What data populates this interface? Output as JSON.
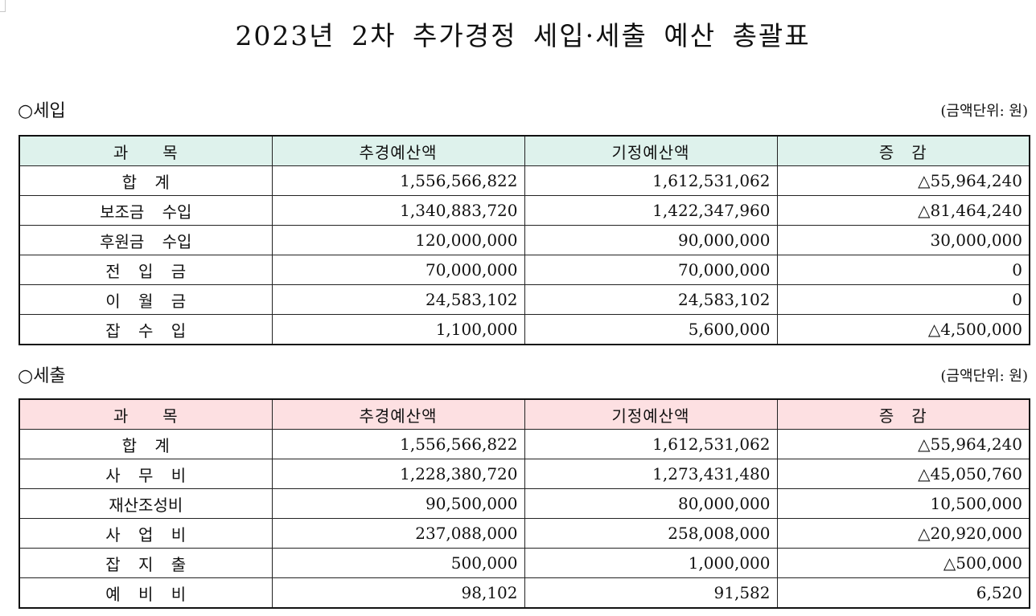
{
  "title": "2023년 2차 추가경정 세입·세출 예산 총괄표",
  "revenue": {
    "section_title": "○세입",
    "unit": "(금액단위: 원)",
    "headers": [
      "과　　목",
      "추경예산액",
      "기정예산액",
      "증　감"
    ],
    "rows": [
      {
        "item": "합 계",
        "supplementary": "1,556,566,822",
        "existing": "1,612,531,062",
        "change": "△55,964,240"
      },
      {
        "item": "보조금 수입",
        "supplementary": "1,340,883,720",
        "existing": "1,422,347,960",
        "change": "△81,464,240"
      },
      {
        "item": "후원금 수입",
        "supplementary": "120,000,000",
        "existing": "90,000,000",
        "change": "30,000,000"
      },
      {
        "item": "전 입 금",
        "supplementary": "70,000,000",
        "existing": "70,000,000",
        "change": "0"
      },
      {
        "item": "이 월 금",
        "supplementary": "24,583,102",
        "existing": "24,583,102",
        "change": "0"
      },
      {
        "item": "잡 수 입",
        "supplementary": "1,100,000",
        "existing": "5,600,000",
        "change": "△4,500,000"
      }
    ]
  },
  "expense": {
    "section_title": "○세출",
    "unit": "(금액단위: 원)",
    "headers": [
      "과　　목",
      "추경예산액",
      "기정예산액",
      "증　감"
    ],
    "rows": [
      {
        "item": "합 계",
        "supplementary": "1,556,566,822",
        "existing": "1,612,531,062",
        "change": "△55,964,240"
      },
      {
        "item": "사 무 비",
        "supplementary": "1,228,380,720",
        "existing": "1,273,431,480",
        "change": "△45,050,760"
      },
      {
        "item": "재산조성비",
        "supplementary": "90,500,000",
        "existing": "80,000,000",
        "change": "10,500,000"
      },
      {
        "item": "사 업 비",
        "supplementary": "237,088,000",
        "existing": "258,008,000",
        "change": "△20,920,000"
      },
      {
        "item": "잡 지 출",
        "supplementary": "500,000",
        "existing": "1,000,000",
        "change": "△500,000"
      },
      {
        "item": "예 비 비",
        "supplementary": "98,102",
        "existing": "91,582",
        "change": "6,520"
      }
    ]
  }
}
